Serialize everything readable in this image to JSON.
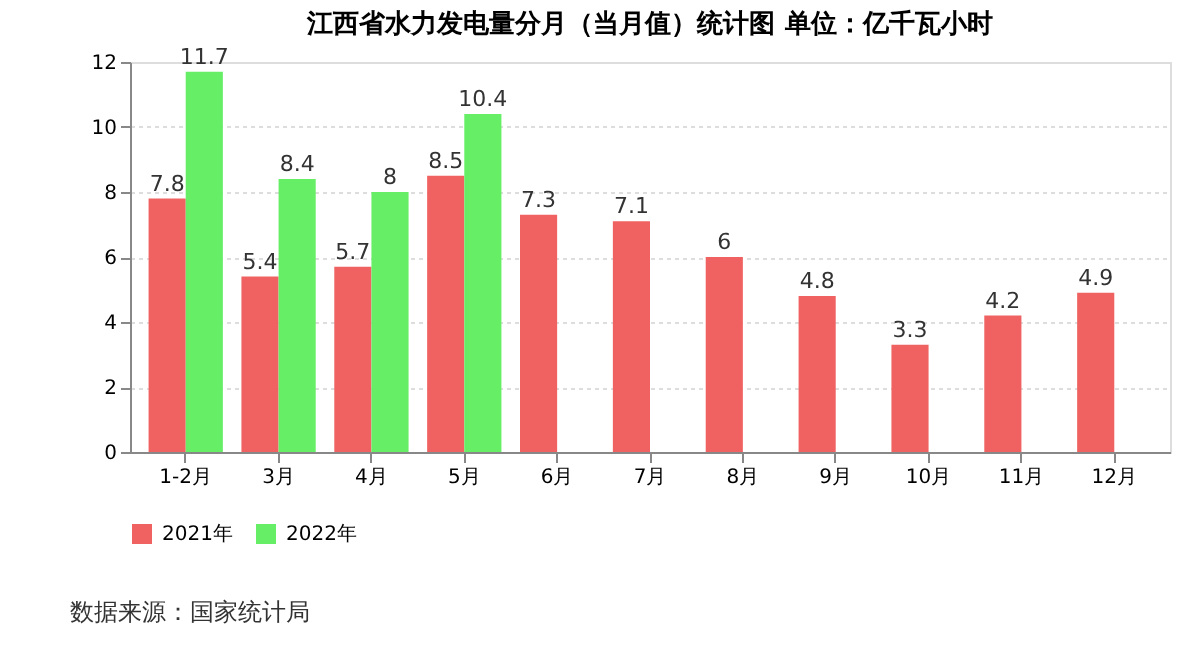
{
  "chart_data": {
    "type": "bar",
    "title": "江西省水力发电量分月（当月值）统计图 单位：亿千瓦小时",
    "categories": [
      "1-2月",
      "3月",
      "4月",
      "5月",
      "6月",
      "7月",
      "8月",
      "9月",
      "10月",
      "11月",
      "12月"
    ],
    "series": [
      {
        "name": "2021年",
        "color": "#f06262",
        "values": [
          7.8,
          5.4,
          5.7,
          8.5,
          7.3,
          7.1,
          6,
          4.8,
          3.3,
          4.2,
          4.9
        ]
      },
      {
        "name": "2022年",
        "color": "#66ee66",
        "values": [
          11.7,
          8.4,
          8,
          10.4,
          null,
          null,
          null,
          null,
          null,
          null,
          null
        ]
      }
    ],
    "ylim": [
      0,
      12
    ],
    "yticks": [
      0,
      2,
      4,
      6,
      8,
      10,
      12
    ],
    "grid": "y",
    "legend": "bottom",
    "data_labels": true,
    "annotations": [
      "数据来源：国家统计局"
    ]
  }
}
